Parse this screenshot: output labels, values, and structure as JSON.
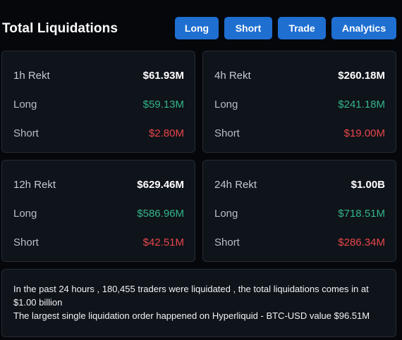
{
  "header": {
    "title": "Total Liquidations",
    "tabs": [
      "Long",
      "Short",
      "Trade",
      "Analytics"
    ]
  },
  "cards": [
    {
      "period_label": "1h Rekt",
      "total": "$61.93M",
      "long_label": "Long",
      "long": "$59.13M",
      "short_label": "Short",
      "short": "$2.80M"
    },
    {
      "period_label": "4h Rekt",
      "total": "$260.18M",
      "long_label": "Long",
      "long": "$241.18M",
      "short_label": "Short",
      "short": "$19.00M"
    },
    {
      "period_label": "12h Rekt",
      "total": "$629.46M",
      "long_label": "Long",
      "long": "$586.96M",
      "short_label": "Short",
      "short": "$42.51M"
    },
    {
      "period_label": "24h Rekt",
      "total": "$1.00B",
      "long_label": "Long",
      "long": "$718.51M",
      "short_label": "Short",
      "short": "$286.34M"
    }
  ],
  "summary": {
    "line1": "In the past 24 hours , 180,455 traders were liquidated , the total liquidations comes in at $1.00 billion",
    "line2": "The largest single liquidation order happened on Hyperliquid - BTC-USD value $96.51M"
  },
  "colors": {
    "background": "#05070b",
    "card": "#0f131a",
    "accent": "#1f6fd1",
    "long": "#33b58a",
    "short": "#e8464a"
  }
}
